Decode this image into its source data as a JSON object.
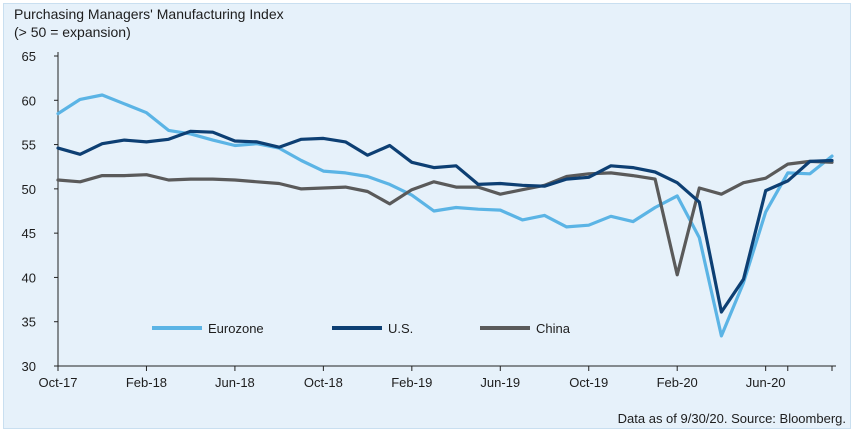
{
  "header": {
    "title": "Purchasing Managers' Manufacturing Index",
    "subtitle": "(> 50 = expansion)"
  },
  "footer": {
    "source": "Data as of 9/30/20. Source: Bloomberg."
  },
  "colors": {
    "background": "#e6f1fa",
    "eurozone": "#5bb4e5",
    "us": "#0d3f73",
    "china": "#5a5a5a",
    "axis": "#222222"
  },
  "chart_data": {
    "type": "line",
    "title": "Purchasing Managers' Manufacturing Index",
    "subtitle": "(> 50 = expansion)",
    "xlabel": "",
    "ylabel": "",
    "ylim": [
      30,
      65
    ],
    "yticks": [
      30,
      35,
      40,
      45,
      50,
      55,
      60,
      65
    ],
    "grid": false,
    "legend_position": "bottom-left",
    "x": [
      "Oct-17",
      "Nov-17",
      "Dec-17",
      "Jan-18",
      "Feb-18",
      "Mar-18",
      "Apr-18",
      "May-18",
      "Jun-18",
      "Jul-18",
      "Aug-18",
      "Sep-18",
      "Oct-18",
      "Nov-18",
      "Dec-18",
      "Jan-19",
      "Feb-19",
      "Mar-19",
      "Apr-19",
      "May-19",
      "Jun-19",
      "Jul-19",
      "Aug-19",
      "Sep-19",
      "Oct-19",
      "Nov-19",
      "Dec-19",
      "Jan-20",
      "Feb-20",
      "Mar-20",
      "Apr-20",
      "May-20",
      "Jun-20",
      "Jul-20",
      "Aug-20",
      "Sep-20"
    ],
    "xtick_labels": [
      "Oct-17",
      "Feb-18",
      "Jun-18",
      "Oct-18",
      "Feb-19",
      "Jun-19",
      "Oct-19",
      "Feb-20",
      "Jun-20"
    ],
    "series": [
      {
        "name": "Eurozone",
        "color": "#5bb4e5",
        "values": [
          58.5,
          60.1,
          60.6,
          59.6,
          58.6,
          56.6,
          56.2,
          55.5,
          54.9,
          55.1,
          54.6,
          53.2,
          52.0,
          51.8,
          51.4,
          50.5,
          49.3,
          47.5,
          47.9,
          47.7,
          47.6,
          46.5,
          47.0,
          45.7,
          45.9,
          46.9,
          46.3,
          47.9,
          49.2,
          44.5,
          33.4,
          39.4,
          47.4,
          51.8,
          51.7,
          53.7
        ]
      },
      {
        "name": "U.S.",
        "color": "#0d3f73",
        "values": [
          54.6,
          53.9,
          55.1,
          55.5,
          55.3,
          55.6,
          56.5,
          56.4,
          55.4,
          55.3,
          54.7,
          55.6,
          55.7,
          55.3,
          53.8,
          54.9,
          53.0,
          52.4,
          52.6,
          50.5,
          50.6,
          50.4,
          50.3,
          51.1,
          51.3,
          52.6,
          52.4,
          51.9,
          50.7,
          48.5,
          36.1,
          39.8,
          49.8,
          50.9,
          53.1,
          53.2
        ]
      },
      {
        "name": "China",
        "color": "#5a5a5a",
        "values": [
          51.0,
          50.8,
          51.5,
          51.5,
          51.6,
          51.0,
          51.1,
          51.1,
          51.0,
          50.8,
          50.6,
          50.0,
          50.1,
          50.2,
          49.7,
          48.3,
          49.9,
          50.8,
          50.2,
          50.2,
          49.4,
          49.9,
          50.4,
          51.4,
          51.7,
          51.8,
          51.5,
          51.1,
          40.3,
          50.1,
          49.4,
          50.7,
          51.2,
          52.8,
          53.1,
          53.0
        ]
      }
    ]
  }
}
